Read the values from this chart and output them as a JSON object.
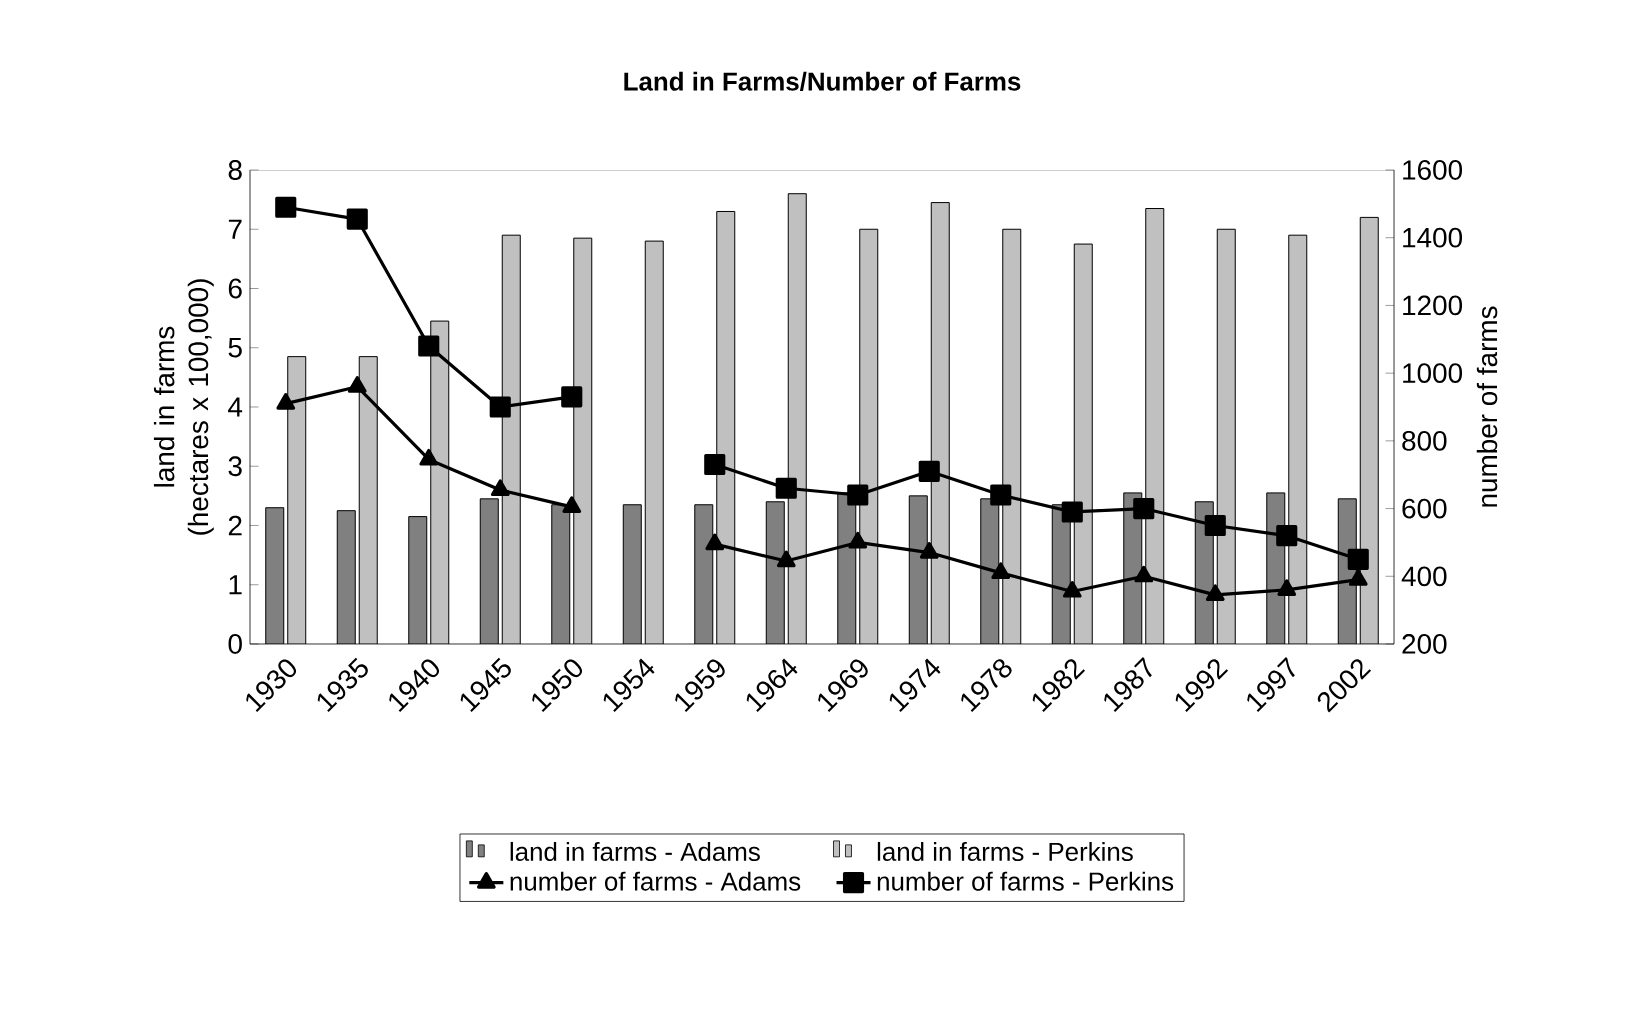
{
  "chart_data": {
    "type": "bar",
    "title": "Land in Farms/Number of Farms",
    "ylabel": "land in farms (hectares x 100,000)",
    "y2label": "number of farms",
    "categories": [
      "1930",
      "1935",
      "1940",
      "1945",
      "1950",
      "1954",
      "1959",
      "1964",
      "1969",
      "1974",
      "1978",
      "1982",
      "1987",
      "1992",
      "1997",
      "2002"
    ],
    "series": [
      {
        "name": "land in farms - Adams",
        "color": "#808080",
        "values": [
          2.3,
          2.25,
          2.15,
          2.45,
          2.35,
          2.35,
          2.35,
          2.4,
          2.55,
          2.5,
          2.45,
          2.35,
          2.55,
          2.4,
          2.55,
          2.45
        ]
      },
      {
        "name": "land in farms - Perkins",
        "color": "#c0c0c0",
        "values": [
          4.85,
          4.85,
          5.45,
          6.9,
          6.85,
          6.8,
          7.3,
          7.6,
          7.0,
          7.45,
          7.0,
          6.75,
          7.35,
          7.0,
          6.9,
          7.2
        ]
      },
      {
        "name": "number of farms - Adams",
        "color": "#000000",
        "type": "line",
        "axis": "y2",
        "marker": "triangle",
        "values": [
          910,
          960,
          745,
          655,
          605,
          null,
          495,
          445,
          500,
          470,
          410,
          355,
          400,
          345,
          360,
          390
        ]
      },
      {
        "name": "number of farms - Perkins",
        "color": "#000000",
        "type": "line",
        "axis": "y2",
        "marker": "square",
        "values": [
          1490,
          1455,
          1080,
          900,
          930,
          null,
          730,
          660,
          640,
          710,
          640,
          590,
          600,
          550,
          520,
          450
        ]
      }
    ],
    "ylim": [
      0,
      8
    ],
    "yticks": [
      0,
      1,
      2,
      3,
      4,
      5,
      6,
      7,
      8
    ],
    "y2lim": [
      200,
      1600
    ],
    "y2ticks": [
      200,
      400,
      600,
      800,
      1000,
      1200,
      1400,
      1600
    ],
    "legend": "bottom"
  }
}
